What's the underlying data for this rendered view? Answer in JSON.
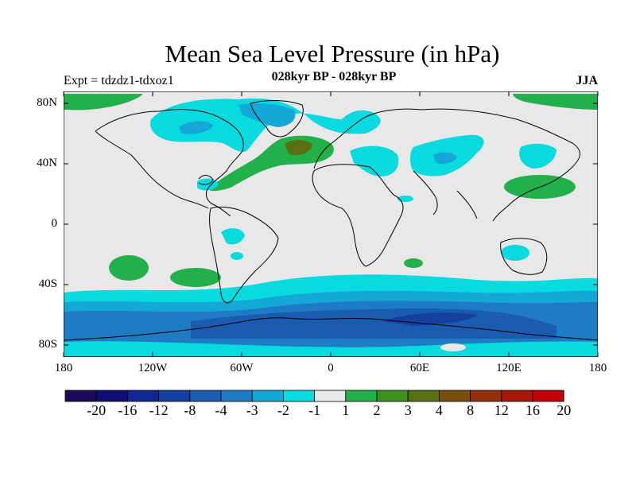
{
  "title": "Mean Sea Level Pressure (in hPa)",
  "experiment": "Expt = tdzdz1-tdxoz1",
  "period": "028kyr BP - 028kyr BP",
  "season": "JJA",
  "lat_labels": [
    "80N",
    "40N",
    "0",
    "40S",
    "80S"
  ],
  "lon_labels": [
    "180",
    "120W",
    "60W",
    "0",
    "60E",
    "120E",
    "180"
  ],
  "colorbar": {
    "labels": [
      "-20",
      "-16",
      "-12",
      "-8",
      "-4",
      "-3",
      "-2",
      "-1",
      "1",
      "2",
      "3",
      "4",
      "8",
      "12",
      "16",
      "20"
    ],
    "colors": [
      "#1a0a57",
      "#0d0e70",
      "#102690",
      "#1440a0",
      "#1a5cb0",
      "#1f7cc4",
      "#13a8d6",
      "#08dbe0",
      "#e8e8e8",
      "#21b04a",
      "#3d8f20",
      "#5a6e12",
      "#7a4f0e",
      "#93300c",
      "#a8160a",
      "#c40008"
    ]
  }
}
